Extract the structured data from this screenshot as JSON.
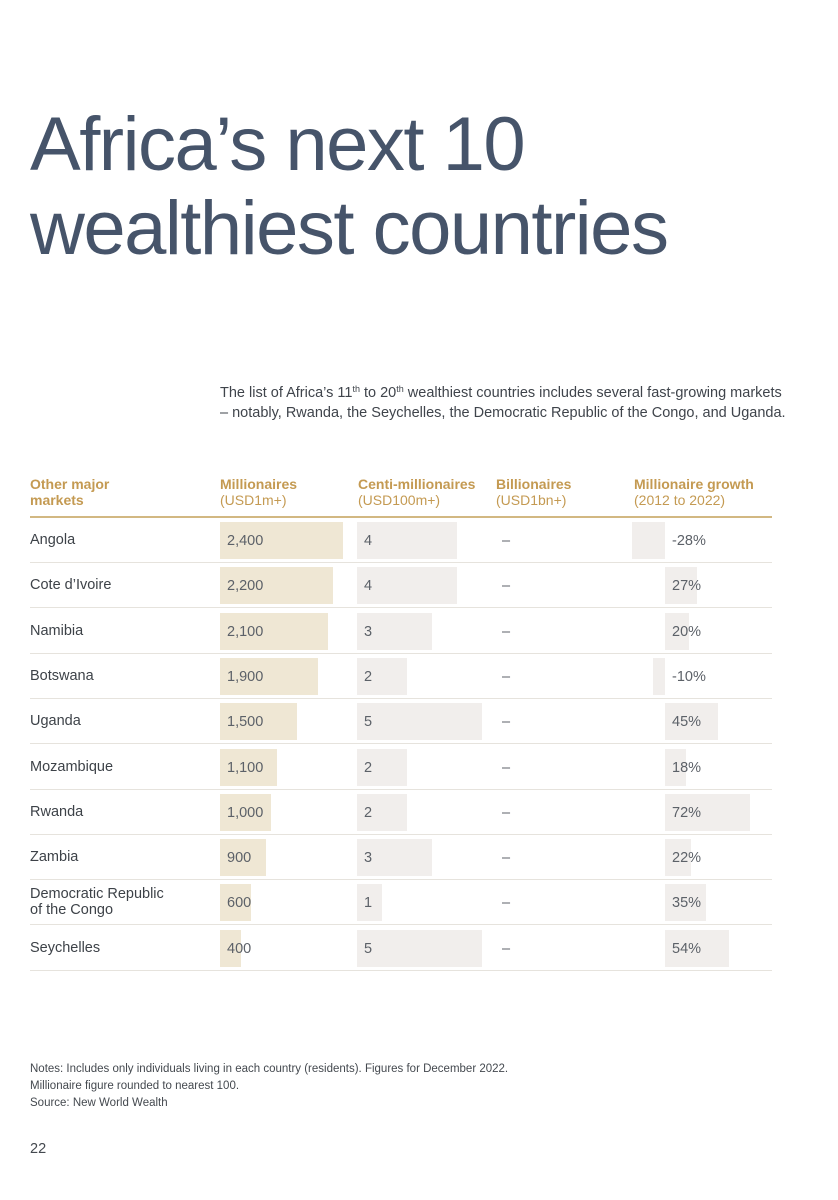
{
  "page": {
    "title_line1": "Africa’s next 10",
    "title_line2": "wealthiest countries",
    "intro_a": "The list of Africa’s 11",
    "intro_sup1": "th",
    "intro_b": " to 20",
    "intro_sup2": "th",
    "intro_c": " wealthiest countries includes several fast-growing markets – notably, Rwanda, the Seychelles, the Democratic Republic of the Congo, and Uganda.",
    "notes": [
      "Notes: Includes only individuals living in each country (residents). Figures for December 2022.",
      "Millionaire figure rounded to nearest 100.",
      "Source: New World Wealth"
    ],
    "page_number": "22"
  },
  "colors": {
    "title": "#46546a",
    "header_gold": "#c49a52",
    "millionaire_bar": "#efe7d4",
    "other_bar": "#f1eeec"
  },
  "chart_data": {
    "type": "table",
    "columns": [
      {
        "line1": "Other major",
        "line2": "markets"
      },
      {
        "line1": "Millionaires",
        "line2": "(USD1m+)"
      },
      {
        "line1": "Centi-millionaires",
        "line2": "(USD100m+)"
      },
      {
        "line1": "Billionaires",
        "line2": "(USD1bn+)"
      },
      {
        "line1": "Millionaire growth",
        "line2": "(2012 to 2022)"
      }
    ],
    "rows": [
      {
        "market": "Angola",
        "millionaires": 2400,
        "millionaires_label": "2,400",
        "centi": 4,
        "billionaires": "–",
        "growth": -28,
        "growth_label": "-28%"
      },
      {
        "market": "Cote d’Ivoire",
        "millionaires": 2200,
        "millionaires_label": "2,200",
        "centi": 4,
        "billionaires": "–",
        "growth": 27,
        "growth_label": "27%"
      },
      {
        "market": "Namibia",
        "millionaires": 2100,
        "millionaires_label": "2,100",
        "centi": 3,
        "billionaires": "–",
        "growth": 20,
        "growth_label": "20%"
      },
      {
        "market": "Botswana",
        "millionaires": 1900,
        "millionaires_label": "1,900",
        "centi": 2,
        "billionaires": "–",
        "growth": -10,
        "growth_label": "-10%"
      },
      {
        "market": "Uganda",
        "millionaires": 1500,
        "millionaires_label": "1,500",
        "centi": 5,
        "billionaires": "–",
        "growth": 45,
        "growth_label": "45%"
      },
      {
        "market": "Mozambique",
        "millionaires": 1100,
        "millionaires_label": "1,100",
        "centi": 2,
        "billionaires": "–",
        "growth": 18,
        "growth_label": "18%"
      },
      {
        "market": "Rwanda",
        "millionaires": 1000,
        "millionaires_label": "1,000",
        "centi": 2,
        "billionaires": "–",
        "growth": 72,
        "growth_label": "72%"
      },
      {
        "market": "Zambia",
        "millionaires": 900,
        "millionaires_label": "900",
        "centi": 3,
        "billionaires": "–",
        "growth": 22,
        "growth_label": "22%"
      },
      {
        "market": "Democratic Republic of the Congo",
        "market_line1": "Democratic Republic",
        "market_line2": "of the Congo",
        "millionaires": 600,
        "millionaires_label": "600",
        "centi": 1,
        "billionaires": "–",
        "growth": 35,
        "growth_label": "35%"
      },
      {
        "market": "Seychelles",
        "millionaires": 400,
        "millionaires_label": "400",
        "centi": 5,
        "billionaires": "–",
        "growth": 54,
        "growth_label": "54%"
      }
    ]
  }
}
